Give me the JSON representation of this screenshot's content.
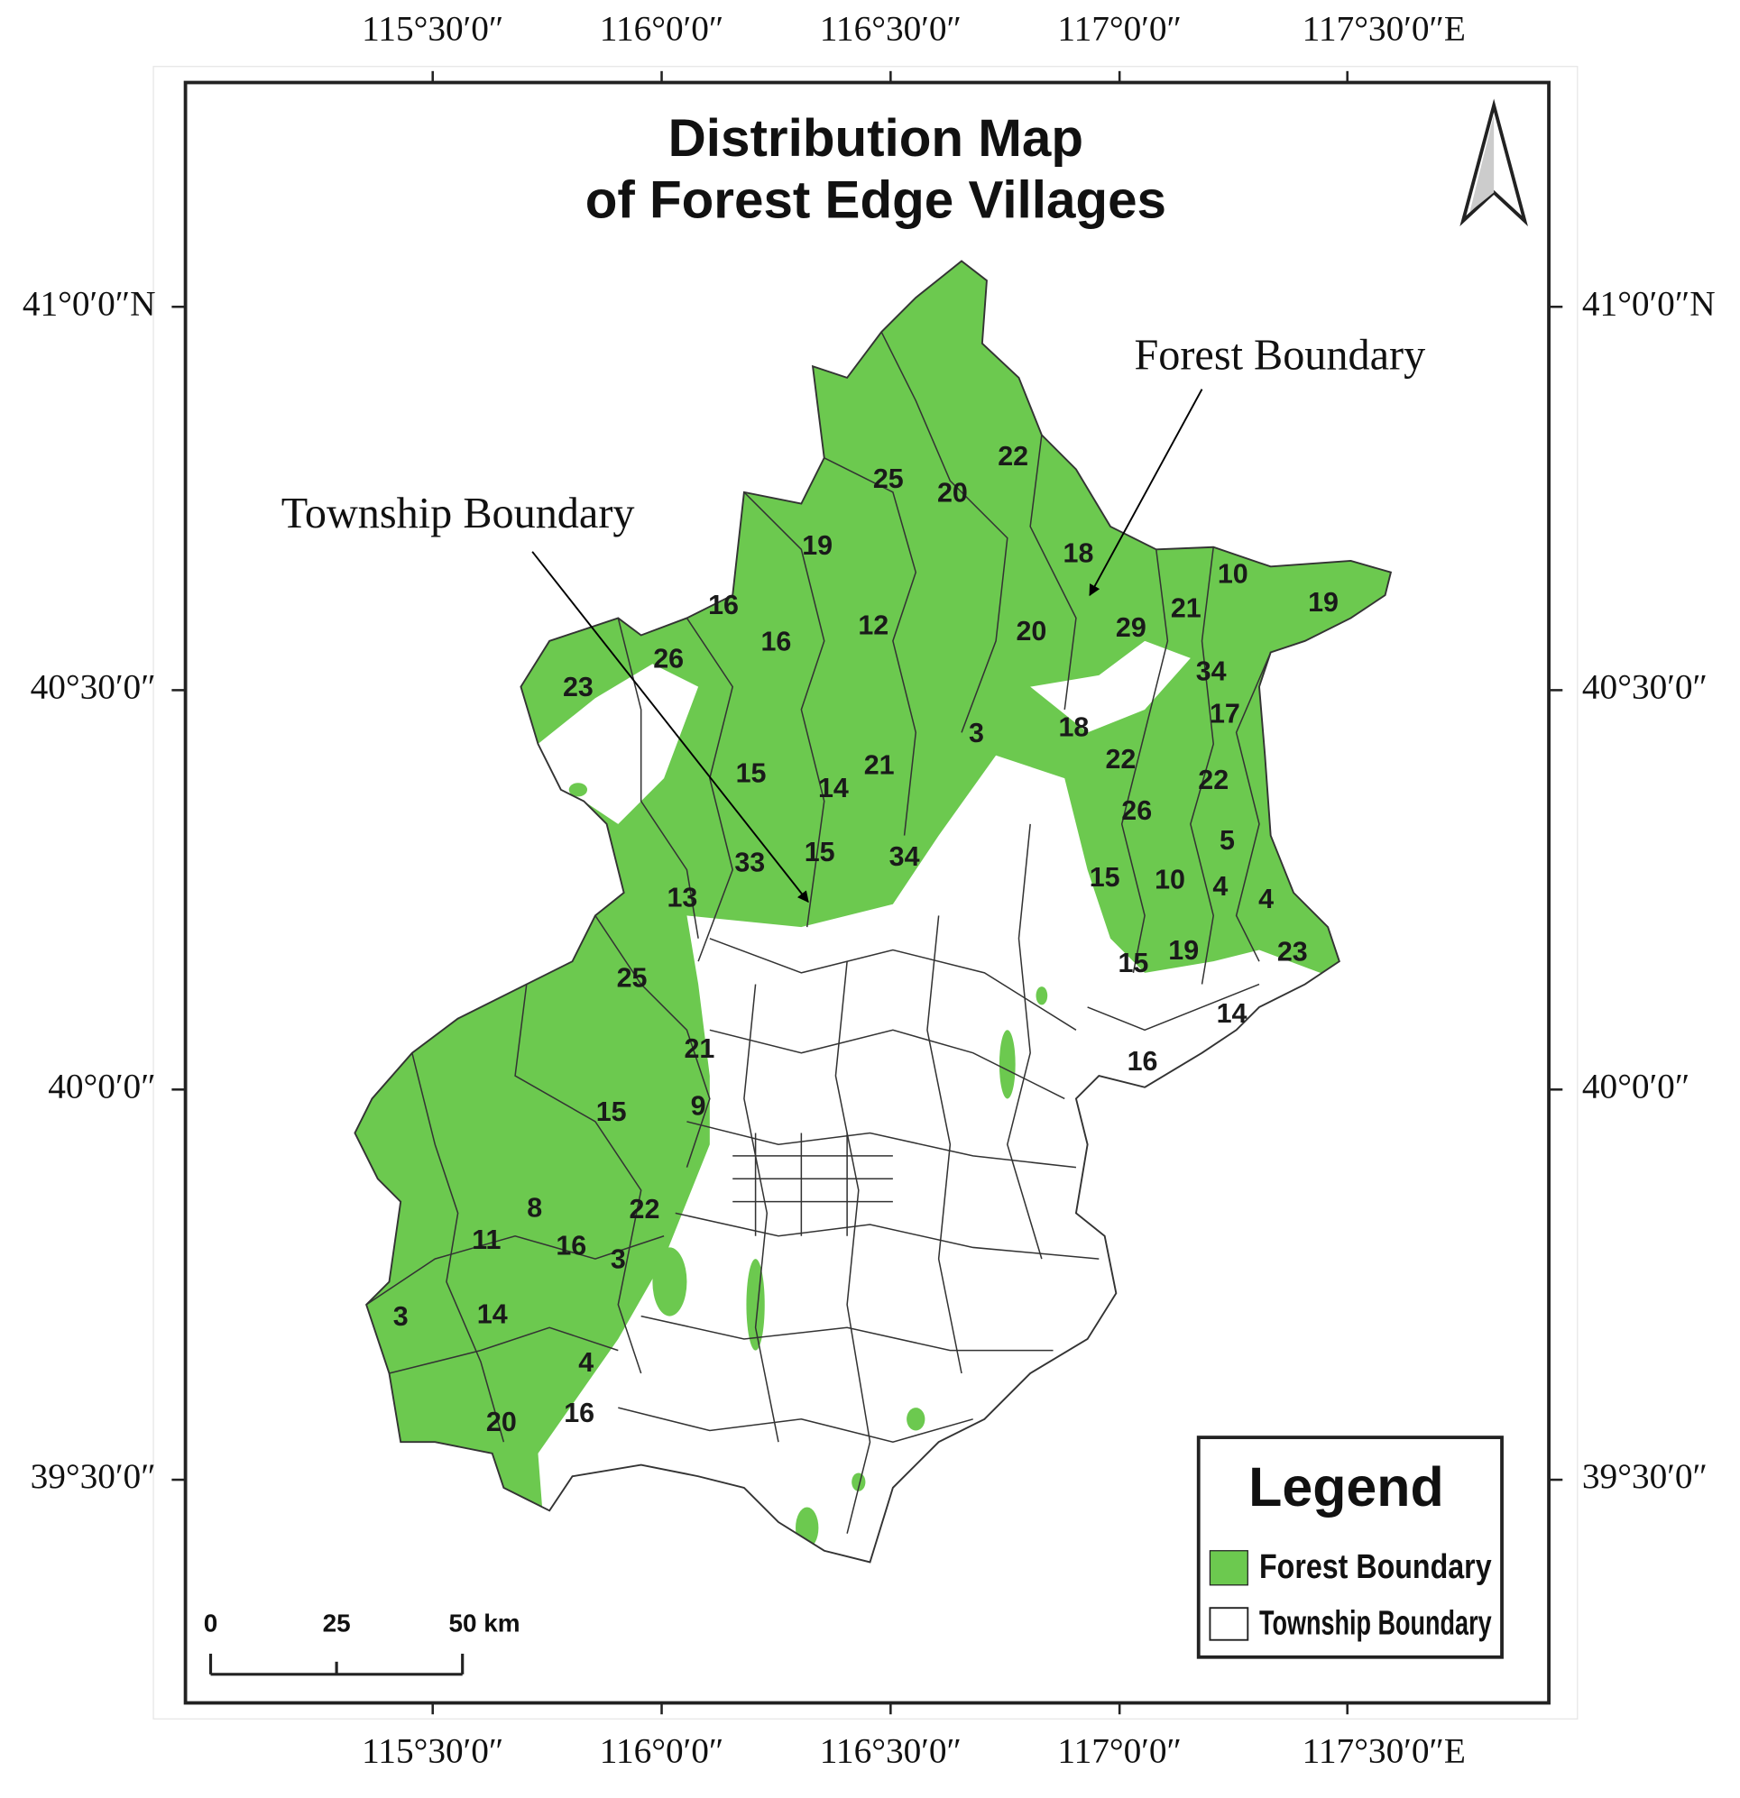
{
  "title_lines": [
    "Distribution Map",
    "of Forest Edge Villages"
  ],
  "longitude_labels": [
    "115°30′0″",
    "116°0′0″",
    "116°30′0″",
    "117°0′0″",
    "117°30′0″E"
  ],
  "latitude_labels": [
    "41°0′0″N",
    "40°30′0″",
    "40°0′0″",
    "39°30′0″"
  ],
  "annotations": [
    "Forest Boundary",
    "Township Boundary"
  ],
  "legend": {
    "title": "Legend",
    "items": [
      "Forest Boundary",
      "Township Boundary"
    ]
  },
  "scale_bar": [
    "0",
    "25",
    "50 km"
  ],
  "region_labels": [
    "22",
    "25",
    "20",
    "19",
    "18",
    "10",
    "19",
    "16",
    "21",
    "12",
    "29",
    "16",
    "20",
    "26",
    "34",
    "23",
    "17",
    "3",
    "18",
    "22",
    "15",
    "21",
    "14",
    "22",
    "26",
    "5",
    "15",
    "34",
    "33",
    "15",
    "10",
    "4",
    "4",
    "13",
    "19",
    "15",
    "23",
    "25",
    "14",
    "16",
    "21",
    "15",
    "9",
    "22",
    "8",
    "11",
    "16",
    "3",
    "14",
    "3",
    "4",
    "16",
    "20"
  ]
}
